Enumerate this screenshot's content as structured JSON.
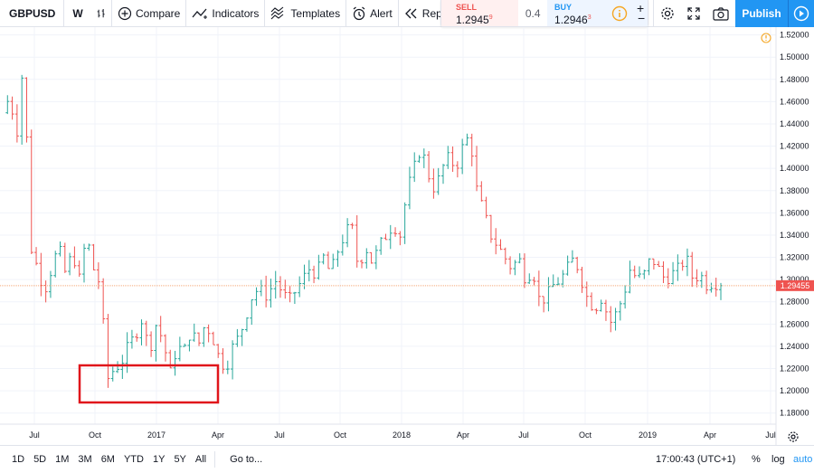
{
  "toolbar": {
    "symbol": "GBPUSD",
    "interval": "W",
    "compare_label": "Compare",
    "indicators_label": "Indicators",
    "templates_label": "Templates",
    "alert_label": "Alert",
    "replay_label": "Replay",
    "publish_label": "Publish"
  },
  "trade": {
    "sell_label": "SELL",
    "sell_price_main": "1.2945",
    "sell_price_sup": "9",
    "spread": "0.4",
    "buy_label": "BUY",
    "buy_price_main": "1.2946",
    "buy_price_sup": "3"
  },
  "colors": {
    "up": "#26a69a",
    "down": "#ef5350",
    "accent": "#2196f3",
    "price_line": "#f5a978",
    "price_tag": "#ef5350",
    "highlight_box": "#e0151b",
    "warning": "#f5a623"
  },
  "bottombar": {
    "ranges": [
      "1D",
      "5D",
      "1M",
      "3M",
      "6M",
      "YTD",
      "1Y",
      "5Y",
      "All"
    ],
    "goto_label": "Go to...",
    "clock": "17:00:43 (UTC+1)",
    "percent_label": "%",
    "log_label": "log",
    "auto_label": "auto"
  },
  "chart_data": {
    "type": "ohlc",
    "symbol": "GBPUSD",
    "interval": "W",
    "current_price_label": "1.29455",
    "y_ticks": [
      "1.52000",
      "1.50000",
      "1.48000",
      "1.46000",
      "1.44000",
      "1.42000",
      "1.40000",
      "1.38000",
      "1.36000",
      "1.34000",
      "1.32000",
      "1.30000",
      "1.28000",
      "1.26000",
      "1.24000",
      "1.22000",
      "1.20000",
      "1.18000"
    ],
    "ylim": [
      1.17,
      1.527
    ],
    "x_ticks": [
      "Jul",
      "Oct",
      "2017",
      "Apr",
      "Jul",
      "Oct",
      "2018",
      "Apr",
      "Jul",
      "Oct",
      "2019",
      "Apr",
      "Jul"
    ],
    "close_path": [
      1.45,
      1.465,
      1.43,
      1.5,
      1.33,
      1.31,
      1.29,
      1.31,
      1.33,
      1.305,
      1.325,
      1.3,
      1.34,
      1.31,
      1.295,
      1.21,
      1.22,
      1.225,
      1.24,
      1.25,
      1.265,
      1.235,
      1.26,
      1.245,
      1.215,
      1.24,
      1.235,
      1.255,
      1.24,
      1.26,
      1.25,
      1.23,
      1.22,
      1.24,
      1.25,
      1.27,
      1.29,
      1.29,
      1.285,
      1.3,
      1.29,
      1.28,
      1.29,
      1.3,
      1.31,
      1.305,
      1.32,
      1.305,
      1.325,
      1.34,
      1.35,
      1.31,
      1.33,
      1.315,
      1.33,
      1.34,
      1.35,
      1.34,
      1.38,
      1.4,
      1.42,
      1.395,
      1.38,
      1.4,
      1.41,
      1.4,
      1.42,
      1.43,
      1.38,
      1.36,
      1.34,
      1.33,
      1.32,
      1.31,
      1.32,
      1.3,
      1.31,
      1.28,
      1.285,
      1.295,
      1.3,
      1.31,
      1.32,
      1.3,
      1.28,
      1.275,
      1.285,
      1.26,
      1.27,
      1.285,
      1.31,
      1.3,
      1.305,
      1.32,
      1.31,
      1.3,
      1.305,
      1.31,
      1.32,
      1.3,
      1.305,
      1.295,
      1.298,
      1.29455
    ]
  }
}
